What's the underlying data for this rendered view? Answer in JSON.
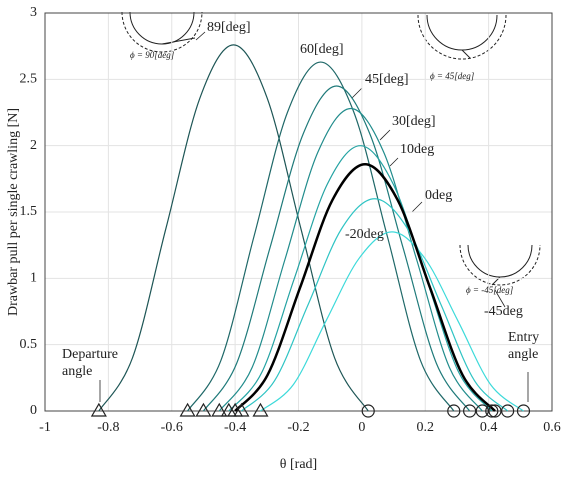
{
  "chart_data": {
    "type": "line",
    "xlabel": "θ [rad]",
    "ylabel": "Drawbar pull per single crawling [N]",
    "xlim": [
      -1,
      0.6
    ],
    "xticks": [
      -1,
      -0.8,
      -0.6,
      -0.4,
      -0.2,
      0,
      0.2,
      0.4,
      0.6
    ],
    "ylim": [
      0,
      3
    ],
    "yticks": [
      0,
      0.5,
      1,
      1.5,
      2,
      2.5,
      3
    ],
    "grid": true,
    "series": [
      {
        "name": "89[deg]",
        "color": "#1e5656",
        "x": [
          -0.83,
          -0.724,
          -0.618,
          -0.511,
          -0.405,
          -0.299,
          -0.193,
          -0.086,
          0.02
        ],
        "values": [
          0,
          0.4,
          1.38,
          2.36,
          2.76,
          2.36,
          1.38,
          0.4,
          0
        ]
      },
      {
        "name": "60[deg]",
        "color": "#1f6868",
        "x": [
          -0.55,
          -0.445,
          -0.34,
          -0.235,
          -0.13,
          -0.025,
          0.08,
          0.185,
          0.29
        ],
        "values": [
          0,
          0.38,
          1.32,
          2.25,
          2.63,
          2.25,
          1.32,
          0.38,
          0
        ]
      },
      {
        "name": "45[deg]",
        "color": "#1f7a7a",
        "x": [
          -0.5,
          -0.395,
          -0.29,
          -0.185,
          -0.08,
          0.025,
          0.13,
          0.235,
          0.34
        ],
        "values": [
          0,
          0.36,
          1.23,
          2.09,
          2.45,
          2.09,
          1.23,
          0.36,
          0
        ]
      },
      {
        "name": "30[deg]",
        "color": "#218c8c",
        "x": [
          -0.45,
          -0.346,
          -0.243,
          -0.139,
          -0.035,
          0.069,
          0.173,
          0.276,
          0.38
        ],
        "values": [
          0,
          0.33,
          1.14,
          1.95,
          2.28,
          1.95,
          1.14,
          0.33,
          0
        ]
      },
      {
        "name": "10deg",
        "color": "#24a3a3",
        "x": [
          -0.42,
          -0.316,
          -0.213,
          -0.109,
          -0.005,
          0.099,
          0.203,
          0.306,
          0.41
        ],
        "values": [
          0,
          0.29,
          1.0,
          1.71,
          2.0,
          1.71,
          1.0,
          0.29,
          0
        ]
      },
      {
        "name": "0deg",
        "color": "#000000",
        "x": [
          -0.4,
          -0.298,
          -0.195,
          -0.093,
          0.01,
          0.113,
          0.215,
          0.318,
          0.42
        ],
        "values": [
          0,
          0.27,
          0.93,
          1.59,
          1.86,
          1.59,
          0.93,
          0.27,
          0
        ]
      },
      {
        "name": "-20deg",
        "color": "#2fc4c4",
        "x": [
          -0.38,
          -0.275,
          -0.17,
          -0.065,
          0.04,
          0.145,
          0.25,
          0.355,
          0.46
        ],
        "values": [
          0,
          0.23,
          0.8,
          1.37,
          1.6,
          1.37,
          0.8,
          0.23,
          0
        ]
      },
      {
        "name": "-45deg",
        "color": "#3ddada",
        "x": [
          -0.32,
          -0.216,
          -0.113,
          -0.009,
          0.095,
          0.199,
          0.303,
          0.406,
          0.51
        ],
        "values": [
          0,
          0.2,
          0.68,
          1.15,
          1.35,
          1.15,
          0.68,
          0.2,
          0
        ]
      }
    ],
    "annotations": [
      "Departure",
      "angle",
      "Entry",
      "angle",
      "ϕ = 90[deg]",
      "ϕ = 45[deg]",
      "ϕ = -45[deg]"
    ]
  }
}
